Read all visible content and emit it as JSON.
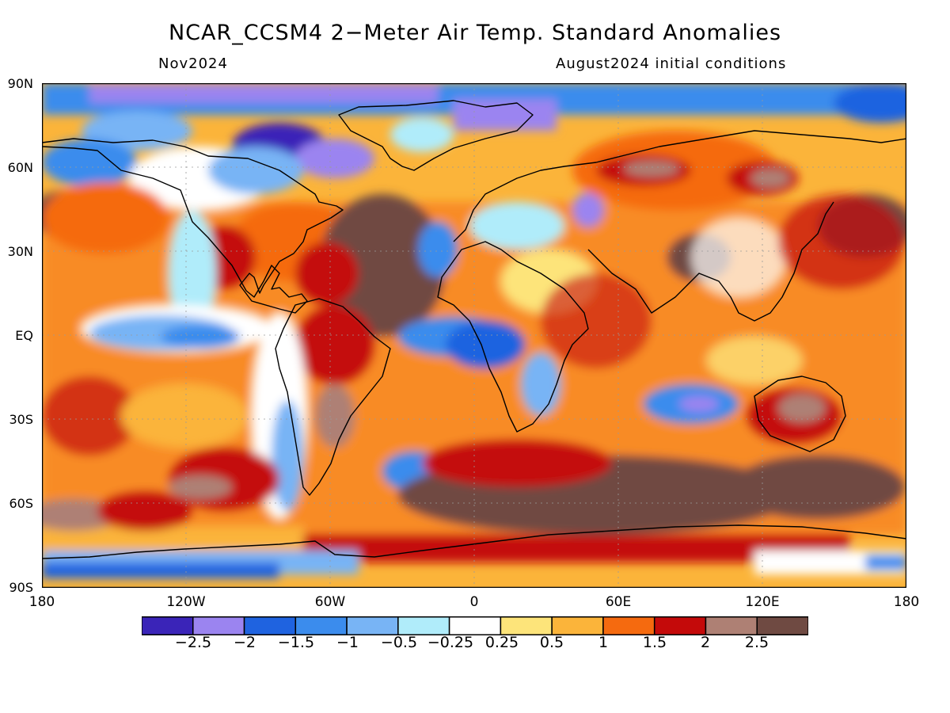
{
  "header": {
    "title": "NCAR_CCSM4 2−Meter Air Temp. Standard Anomalies",
    "valid_month": "Nov2024",
    "init_conditions": "August2024 initial conditions"
  },
  "axes": {
    "lat_labels": [
      "90N",
      "60N",
      "30N",
      "EQ",
      "30S",
      "60S",
      "90S"
    ],
    "lon_labels": [
      "180",
      "120W",
      "60W",
      "0",
      "60E",
      "120E",
      "180"
    ]
  },
  "colorbar": {
    "labels": [
      "−2.5",
      "−2",
      "−1.5",
      "−1",
      "−0.5",
      "−0.25",
      "0.25",
      "0.5",
      "1",
      "1.5",
      "2",
      "2.5"
    ],
    "colors": [
      "#3a24b8",
      "#9b84f0",
      "#1f63e0",
      "#3b8ced",
      "#78b4f5",
      "#b0ecfa",
      "#ffffff",
      "#fde47a",
      "#fbb43a",
      "#f56a0f",
      "#c40a0a",
      "#ae8074",
      "#6f4a42"
    ]
  },
  "colors": {
    "land_outline": "#000000",
    "grid": "#9a9a9a",
    "background_anomaly": "#fbb43a"
  }
}
